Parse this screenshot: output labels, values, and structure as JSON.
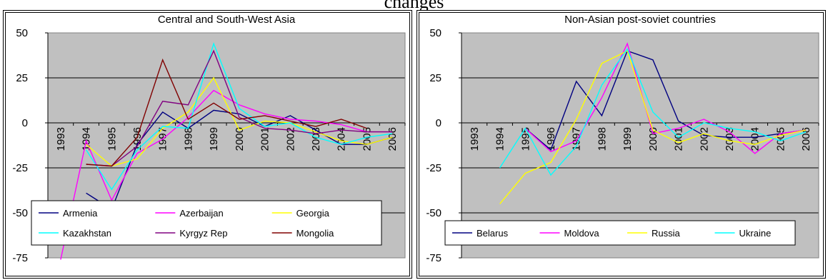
{
  "page": {
    "title": "changes"
  },
  "chart_data": [
    {
      "type": "line",
      "title": "Central and South-West Asia",
      "categories": [
        "1993",
        "1994",
        "1995",
        "1996",
        "1997",
        "1998",
        "1999",
        "2000",
        "2001",
        "2002",
        "2003",
        "2004",
        "2005",
        "2006"
      ],
      "ylim": [
        -75,
        50
      ],
      "yticks": [
        50,
        25,
        0,
        -25,
        -50,
        -75
      ],
      "grid": true,
      "legend_position": "bottom",
      "series": [
        {
          "name": "Armenia",
          "color": "#000080",
          "values": [
            null,
            -39,
            -48,
            -12,
            6,
            -3,
            7,
            5,
            -2,
            4,
            -4,
            -12,
            -12,
            -8
          ]
        },
        {
          "name": "Azerbaijan",
          "color": "#FF00FF",
          "values": [
            -76,
            -10,
            -43,
            -17,
            -9,
            3,
            18,
            10,
            5,
            2,
            1,
            -1,
            -5,
            -5
          ]
        },
        {
          "name": "Georgia",
          "color": "#FFFF00",
          "values": [
            null,
            -12,
            -24,
            -20,
            -3,
            6,
            25,
            -4,
            1,
            0,
            -5,
            -10,
            -12,
            -8
          ]
        },
        {
          "name": "Kazakhstan",
          "color": "#00FFFF",
          "values": [
            null,
            -15,
            -37,
            -15,
            -2,
            -3,
            44,
            8,
            -2,
            0,
            -8,
            -12,
            -8,
            -6
          ]
        },
        {
          "name": "Kyrgyz Rep",
          "color": "#800080",
          "values": [
            null,
            -23,
            -24,
            -13,
            12,
            10,
            40,
            3,
            -3,
            -4,
            -6,
            -4,
            -5,
            -5
          ]
        },
        {
          "name": "Mongolia",
          "color": "#800000",
          "values": [
            null,
            -23,
            -24,
            -8,
            35,
            2,
            11,
            2,
            4,
            1,
            -2,
            2,
            -3,
            null
          ]
        }
      ]
    },
    {
      "type": "line",
      "title": "Non-Asian post-soviet countries",
      "categories": [
        "1993",
        "1994",
        "1995",
        "1996",
        "1997",
        "1998",
        "1999",
        "2000",
        "2001",
        "2002",
        "2003",
        "2004",
        "2005",
        "2006"
      ],
      "ylim": [
        -75,
        50
      ],
      "yticks": [
        50,
        25,
        0,
        -25,
        -50,
        -75
      ],
      "grid": true,
      "legend_position": "bottom",
      "series": [
        {
          "name": "Belarus",
          "color": "#000080",
          "values": [
            null,
            null,
            -3,
            -15,
            23,
            4,
            40,
            35,
            1,
            -7,
            -8,
            -8,
            -6,
            -4
          ]
        },
        {
          "name": "Moldova",
          "color": "#FF00FF",
          "values": [
            null,
            null,
            -3,
            -16,
            -10,
            14,
            44,
            -6,
            -3,
            2,
            -5,
            -17,
            -6,
            -4
          ]
        },
        {
          "name": "Russia",
          "color": "#FFFF00",
          "values": [
            null,
            -45,
            -28,
            -22,
            2,
            33,
            40,
            -4,
            -11,
            -6,
            -10,
            -12,
            -7,
            -4
          ]
        },
        {
          "name": "Ukraine",
          "color": "#00FFFF",
          "values": [
            null,
            -25,
            -3,
            -29,
            -13,
            21,
            41,
            6,
            -8,
            0,
            -3,
            -5,
            -10,
            -5
          ]
        }
      ]
    }
  ]
}
